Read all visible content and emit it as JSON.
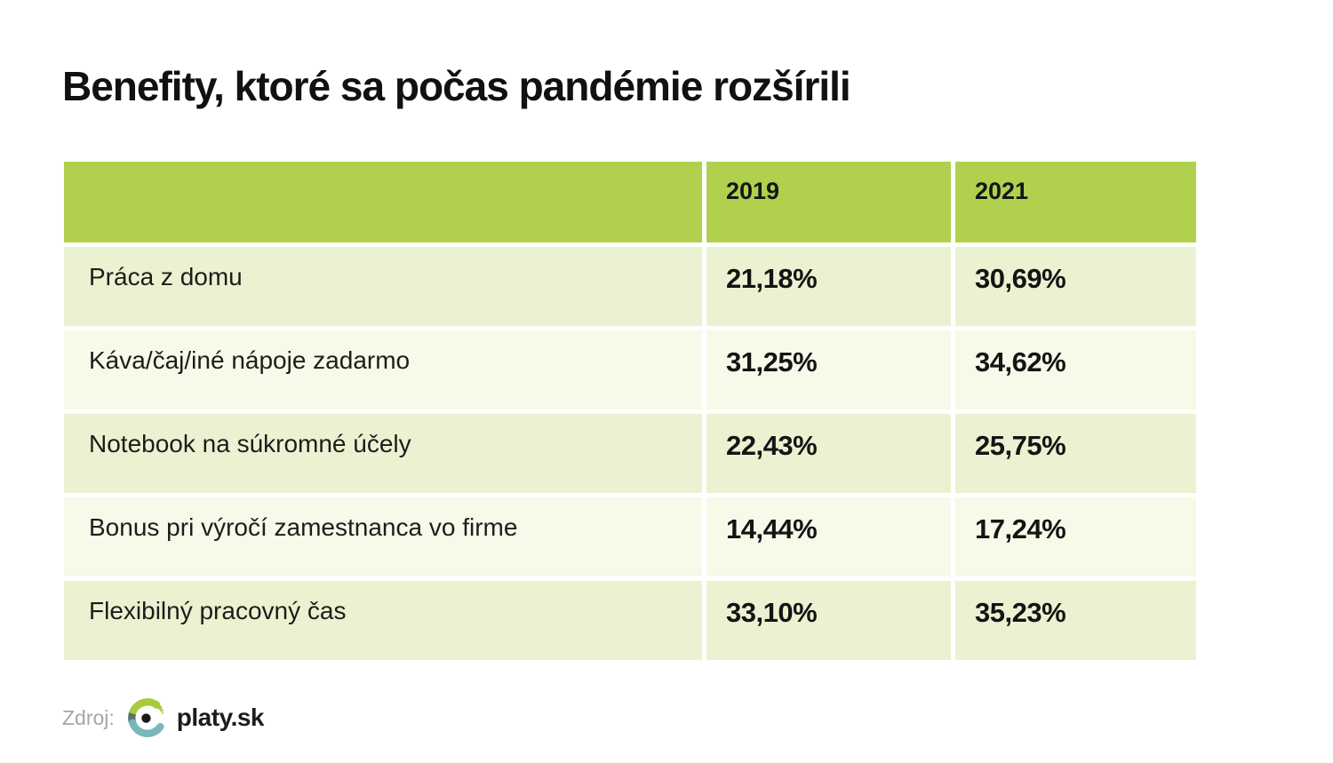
{
  "title": "Benefity, ktoré sa počas pandémie rozšírili",
  "chart_data": {
    "type": "table",
    "title": "Benefity, ktoré sa počas pandémie rozšírili",
    "columns": [
      "",
      "2019",
      "2021"
    ],
    "categories": [
      "Práca z domu",
      "Káva/čaj/iné nápoje zadarmo",
      "Notebook na súkromné účely",
      "Bonus pri výročí zamestnanca vo firme",
      "Flexibilný pracovný čas"
    ],
    "series": [
      {
        "name": "2019",
        "values": [
          21.18,
          31.25,
          22.43,
          14.44,
          33.1
        ]
      },
      {
        "name": "2021",
        "values": [
          30.69,
          34.62,
          25.75,
          17.24,
          35.23
        ]
      }
    ]
  },
  "table": {
    "columns": [
      "",
      "2019",
      "2021"
    ],
    "rows": [
      {
        "label": "Práca z domu",
        "values": [
          "21,18%",
          "30,69%"
        ]
      },
      {
        "label": "Káva/čaj/iné nápoje zadarmo",
        "values": [
          "31,25%",
          "34,62%"
        ]
      },
      {
        "label": "Notebook na súkromné účely",
        "values": [
          "22,43%",
          "25,75%"
        ]
      },
      {
        "label": "Bonus pri výročí zamestnanca vo firme",
        "values": [
          "14,44%",
          "17,24%"
        ]
      },
      {
        "label": "Flexibilný pracovný čas",
        "values": [
          "33,10%",
          "35,23%"
        ]
      }
    ]
  },
  "footer": {
    "source_label": "Zdroj:",
    "brand": "platy.sk"
  },
  "colors": {
    "header_green": "#b1d14e",
    "row_light_green": "#ebf2d1",
    "row_off_white": "#f7f9e9",
    "logo_lime": "#a6cc39",
    "logo_teal": "#79b7ba",
    "logo_dark": "#5f7070",
    "source_gray": "#a2aa9c",
    "text": "#1a1a1a"
  }
}
